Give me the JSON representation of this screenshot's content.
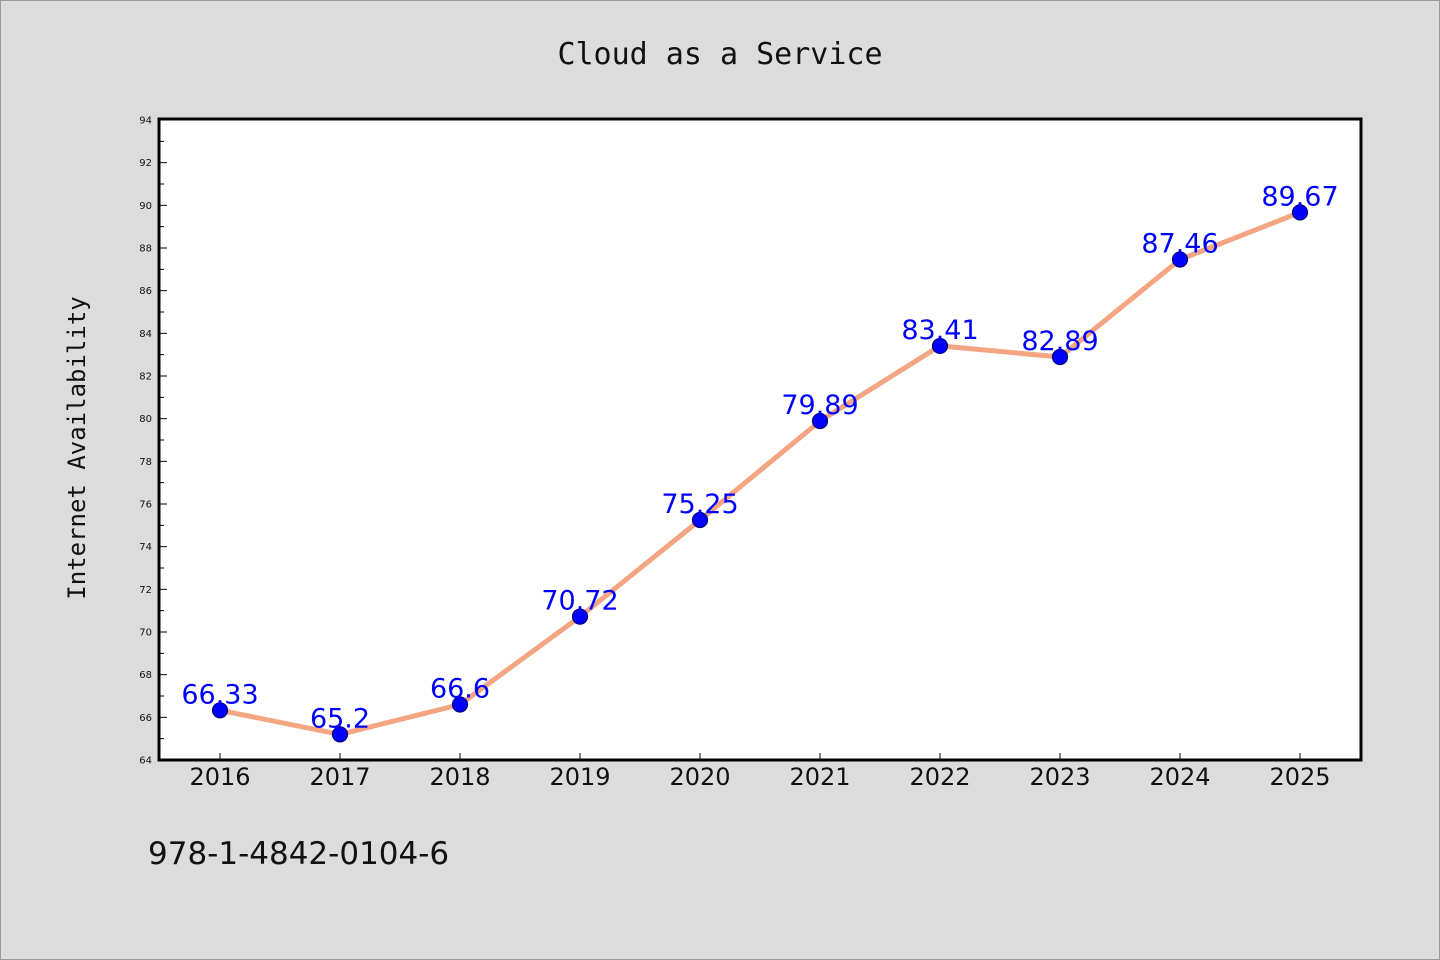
{
  "chart_data": {
    "type": "line",
    "title": "Cloud as a Service",
    "xlabel": "",
    "ylabel": "Internet Availability",
    "categories": [
      "2016",
      "2017",
      "2018",
      "2019",
      "2020",
      "2021",
      "2022",
      "2023",
      "2024",
      "2025"
    ],
    "series": [
      {
        "values": [
          66.33,
          65.2,
          66.6,
          70.72,
          75.25,
          79.89,
          83.41,
          82.89,
          87.46,
          89.67
        ]
      }
    ],
    "data_labels": [
      "66.33",
      "65.2",
      "66.6",
      "70.72",
      "75.25",
      "79.89",
      "83.41",
      "82.89",
      "87.46",
      "89.67"
    ],
    "ylim": [
      64,
      94
    ],
    "yticks": [
      64,
      66,
      68,
      70,
      72,
      74,
      76,
      78,
      80,
      82,
      84,
      86,
      88,
      90,
      92,
      94
    ],
    "grid": false,
    "legend": "none",
    "colors": {
      "line": "#f4a582",
      "marker": "#0000ff",
      "marker_edge": "#000080",
      "data_label": "#0000ff",
      "background": "#dcdcdc",
      "plot_background": "#ffffff"
    }
  },
  "footer": {
    "isbn": "978-1-4842-0104-6"
  }
}
